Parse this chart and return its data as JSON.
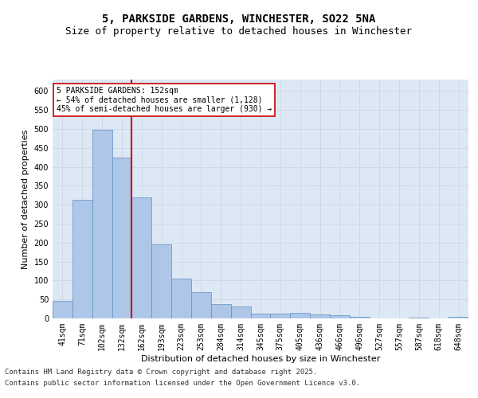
{
  "title_line1": "5, PARKSIDE GARDENS, WINCHESTER, SO22 5NA",
  "title_line2": "Size of property relative to detached houses in Winchester",
  "xlabel": "Distribution of detached houses by size in Winchester",
  "ylabel": "Number of detached properties",
  "categories": [
    "41sqm",
    "71sqm",
    "102sqm",
    "132sqm",
    "162sqm",
    "193sqm",
    "223sqm",
    "253sqm",
    "284sqm",
    "314sqm",
    "345sqm",
    "375sqm",
    "405sqm",
    "436sqm",
    "466sqm",
    "496sqm",
    "527sqm",
    "557sqm",
    "587sqm",
    "618sqm",
    "648sqm"
  ],
  "values": [
    46,
    313,
    497,
    424,
    320,
    195,
    105,
    70,
    37,
    32,
    13,
    12,
    15,
    10,
    8,
    5,
    0,
    0,
    3,
    0,
    4
  ],
  "bar_color": "#aec6e8",
  "bar_edge_color": "#5f8fc4",
  "grid_color": "#d0d8e8",
  "background_color": "#dde8f5",
  "vline_color": "#cc0000",
  "vline_x_index": 3.5,
  "annotation_text": "5 PARKSIDE GARDENS: 152sqm\n← 54% of detached houses are smaller (1,128)\n45% of semi-detached houses are larger (930) →",
  "annotation_box_color": "#ffffff",
  "annotation_box_edge": "#cc0000",
  "footer_line1": "Contains HM Land Registry data © Crown copyright and database right 2025.",
  "footer_line2": "Contains public sector information licensed under the Open Government Licence v3.0.",
  "ylim": [
    0,
    630
  ],
  "yticks": [
    0,
    50,
    100,
    150,
    200,
    250,
    300,
    350,
    400,
    450,
    500,
    550,
    600
  ],
  "title_fontsize": 10,
  "subtitle_fontsize": 9,
  "axis_label_fontsize": 8,
  "tick_fontsize": 7,
  "annotation_fontsize": 7,
  "footer_fontsize": 6.5
}
